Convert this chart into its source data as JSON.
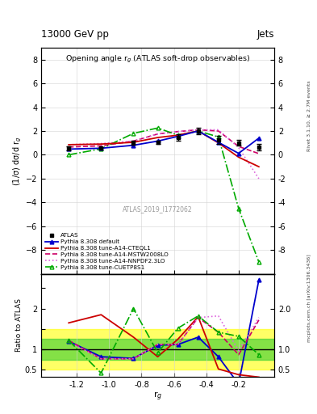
{
  "title_top": "13000 GeV pp",
  "title_right": "Jets",
  "plot_title": "Opening angle r$_g$ (ATLAS soft-drop observables)",
  "xlabel": "r$_g$",
  "ylabel_main": "(1/σ) dσ/d r$_g$",
  "ylabel_ratio": "Ratio to ATLAS",
  "right_label_top": "Rivet 3.1.10, ≥ 2.7M events",
  "right_label_bot": "mcplots.cern.ch [arXiv:1306.3436]",
  "watermark": "ATLAS_2019_I1772062",
  "xvals": [
    -1.25,
    -1.05,
    -0.85,
    -0.7,
    -0.575,
    -0.45,
    -0.325,
    -0.2,
    -0.075
  ],
  "atlas_y": [
    0.55,
    0.55,
    1.0,
    1.05,
    1.45,
    2.0,
    1.25,
    1.0,
    0.65
  ],
  "atlas_yerr": [
    0.15,
    0.12,
    0.15,
    0.12,
    0.25,
    0.3,
    0.35,
    0.25,
    0.25
  ],
  "default_y": [
    0.48,
    0.55,
    0.8,
    1.15,
    1.55,
    2.0,
    1.05,
    0.12,
    1.4
  ],
  "cteql1_y": [
    0.85,
    0.9,
    1.05,
    1.45,
    1.65,
    2.0,
    1.0,
    -0.2,
    -1.0
  ],
  "mstw_y": [
    0.65,
    0.75,
    1.15,
    1.75,
    1.95,
    2.1,
    2.0,
    0.7,
    0.1
  ],
  "nnpdf_y": [
    0.85,
    0.95,
    1.15,
    1.75,
    1.95,
    2.1,
    2.1,
    0.6,
    -2.0
  ],
  "cuetp_y": [
    0.0,
    0.5,
    1.8,
    2.25,
    1.65,
    2.0,
    1.5,
    -4.5,
    -9.0
  ],
  "default_ratio": [
    1.2,
    0.82,
    0.78,
    1.1,
    1.12,
    1.3,
    0.82,
    0.15,
    2.7
  ],
  "cteql1_ratio": [
    1.65,
    1.85,
    1.3,
    0.82,
    1.25,
    1.8,
    0.52,
    0.38,
    0.32
  ],
  "mstw_ratio": [
    1.22,
    0.77,
    0.77,
    1.12,
    1.12,
    1.78,
    1.42,
    0.87,
    1.72
  ],
  "nnpdf_ratio": [
    1.18,
    0.77,
    0.77,
    1.12,
    1.12,
    1.78,
    1.82,
    0.97,
    1.78
  ],
  "cuetp_ratio": [
    1.22,
    0.42,
    2.0,
    0.92,
    1.52,
    1.82,
    1.42,
    1.32,
    0.87
  ],
  "color_atlas": "#000000",
  "color_default": "#0000cc",
  "color_cteql1": "#cc0000",
  "color_mstw": "#cc0066",
  "color_nnpdf": "#dd66dd",
  "color_cuetp": "#00aa00",
  "ylim_main": [
    -10,
    9
  ],
  "ylim_ratio": [
    0.33,
    2.85
  ],
  "xlim": [
    -1.42,
    0.02
  ],
  "yticks_main": [
    -8,
    -6,
    -4,
    -2,
    0,
    2,
    4,
    6,
    8
  ],
  "yticks_ratio": [
    0.5,
    1.0,
    2.0
  ],
  "xticks": [
    -1.2,
    -1.0,
    -0.8,
    -0.6,
    -0.4,
    -0.2
  ]
}
